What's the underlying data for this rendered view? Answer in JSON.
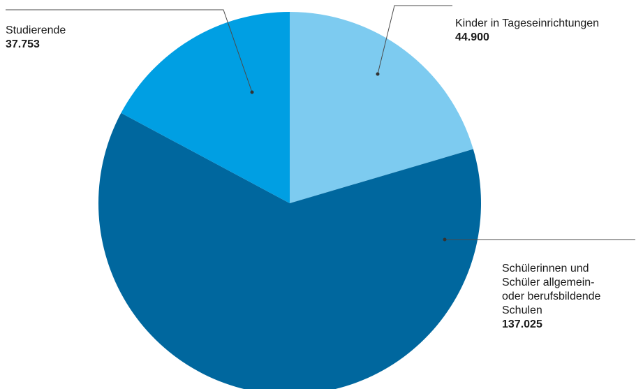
{
  "chart_data": {
    "type": "pie",
    "slices": [
      {
        "label": "Kinder in Tageseinrichtungen",
        "value": 44900,
        "value_text": "44.900",
        "color": "#7dcbf0"
      },
      {
        "label": "Schülerinnen und Schüler allgemein- oder berufsbildende Schulen",
        "label_lines": [
          "Schülerinnen und",
          "Schüler allgemein-",
          "oder berufsbildende",
          "Schulen"
        ],
        "value": 137025,
        "value_text": "137.025",
        "color": "#00679e"
      },
      {
        "label": "Studierende",
        "value": 37753,
        "value_text": "37.753",
        "color": "#009fe3"
      }
    ],
    "start": "12 o'clock",
    "direction": "clockwise",
    "legend": "callout labels with leader lines"
  }
}
